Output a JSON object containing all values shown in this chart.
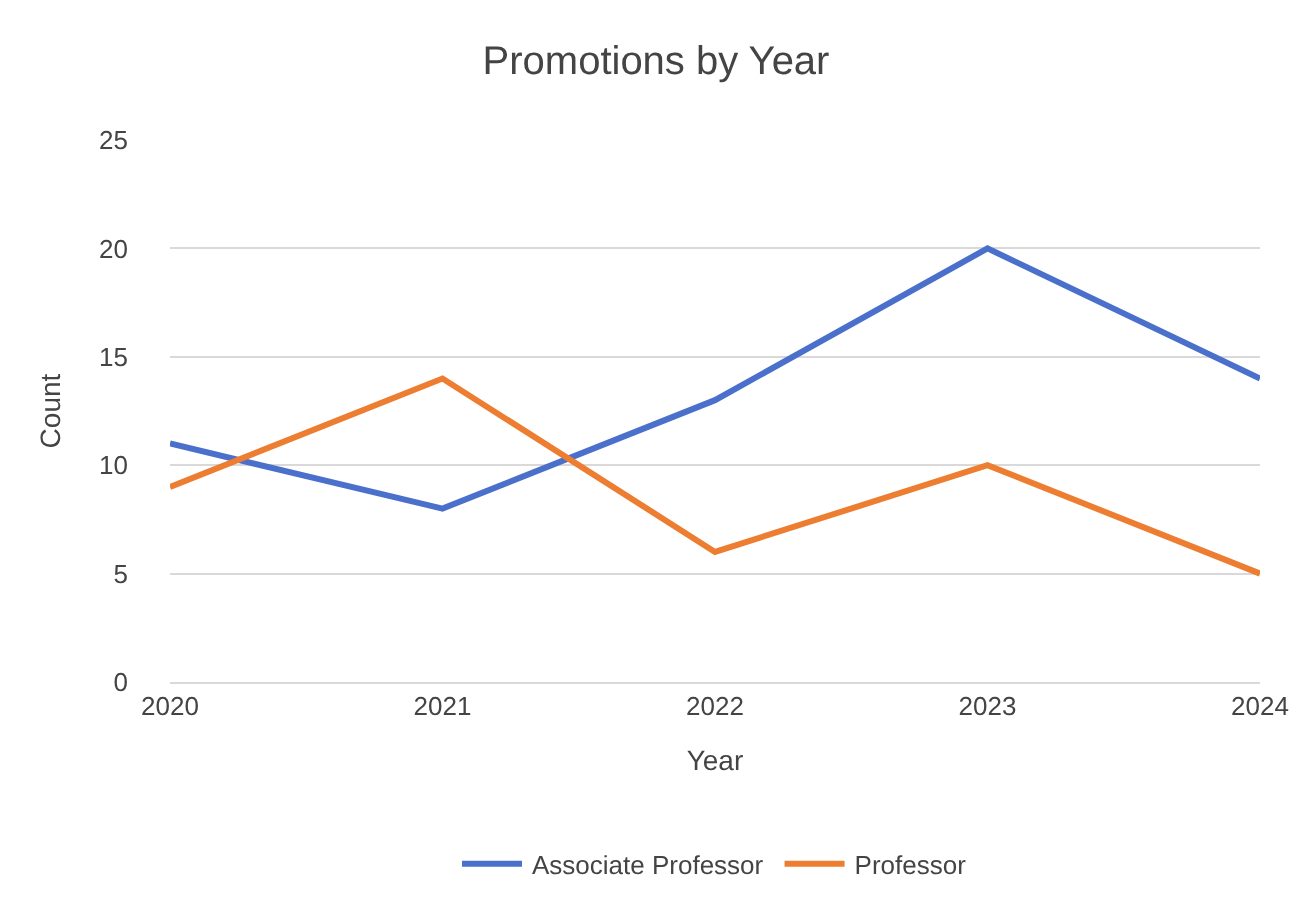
{
  "chart_data": {
    "type": "line",
    "title": "Promotions by Year",
    "xlabel": "Year",
    "ylabel": "Count",
    "x": [
      2020,
      2021,
      2022,
      2023,
      2024
    ],
    "series": [
      {
        "name": "Associate Professor",
        "color": "#4a70cc",
        "values": [
          11,
          8,
          13,
          20,
          14
        ]
      },
      {
        "name": "Professor",
        "color": "#ed7d31",
        "values": [
          9,
          14,
          6,
          10,
          5
        ]
      }
    ],
    "xlim": [
      2020,
      2024
    ],
    "xticks": [
      2020,
      2021,
      2022,
      2023,
      2024
    ],
    "ylim": [
      0,
      25
    ],
    "yticks": [
      0,
      5,
      10,
      15,
      20,
      25
    ],
    "grid": "y",
    "legend": "bottom"
  }
}
